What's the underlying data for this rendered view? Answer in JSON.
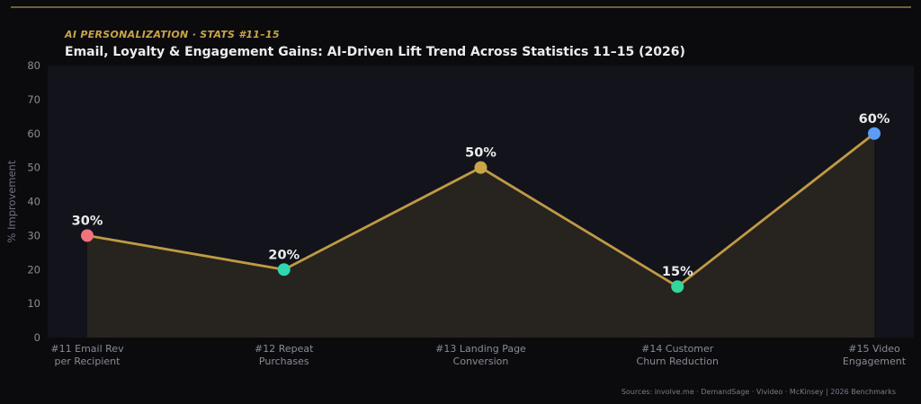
{
  "header": {
    "subtitle": "AI PERSONALIZATION  ·  STATS #11–15",
    "title": "Email, Loyalty & Engagement Gains: AI-Driven Lift Trend Across Statistics 11–15 (2026)"
  },
  "footer": {
    "source": "Sources: involve.me · DemandSage · Vivideo · McKinsey  |  2026 Benchmarks"
  },
  "chart_data": {
    "type": "line",
    "title": "Email, Loyalty & Engagement Gains: AI-Driven Lift Trend Across Statistics 11–15 (2026)",
    "subtitle": "AI PERSONALIZATION  ·  STATS #11–15",
    "xlabel": "",
    "ylabel": "% Improvement",
    "ylim": [
      0,
      80
    ],
    "yticks": [
      0,
      10,
      20,
      30,
      40,
      50,
      60,
      70,
      80
    ],
    "grid": false,
    "area_fill": true,
    "categories": [
      [
        "#11 Email Rev",
        "per Recipient"
      ],
      [
        "#12 Repeat",
        "Purchases"
      ],
      [
        "#13 Landing Page",
        "Conversion"
      ],
      [
        "#14 Customer",
        "Churn Reduction"
      ],
      [
        "#15 Video",
        "Engagement"
      ]
    ],
    "values": [
      30,
      20,
      50,
      15,
      60
    ],
    "data_labels": [
      "30%",
      "20%",
      "50%",
      "15%",
      "60%"
    ],
    "point_colors": [
      "#f0727a",
      "#2fd6b0",
      "#c9a548",
      "#35d69a",
      "#5b9cf5"
    ],
    "line_color": "#bf9a45",
    "fill_color": "#2a2620",
    "plot_bg": "#12131b"
  }
}
